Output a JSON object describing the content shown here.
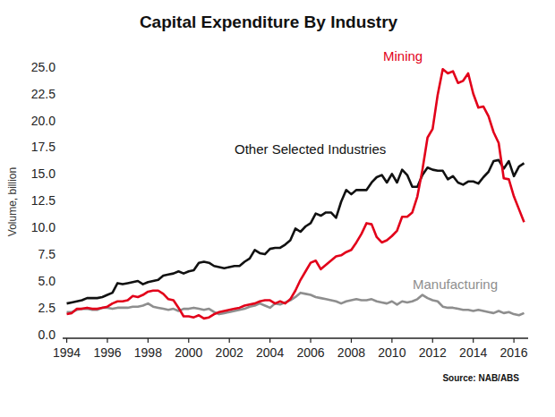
{
  "chart_data": {
    "type": "line",
    "title": "Capital Expenditure By Industry",
    "ylabel": "Volume, billion",
    "source": "Source: NAB/ABS",
    "x": [
      1994,
      1994.25,
      1994.5,
      1994.75,
      1995,
      1995.25,
      1995.5,
      1995.75,
      1996,
      1996.25,
      1996.5,
      1996.75,
      1997,
      1997.25,
      1997.5,
      1997.75,
      1998,
      1998.25,
      1998.5,
      1998.75,
      1999,
      1999.25,
      1999.5,
      1999.75,
      2000,
      2000.25,
      2000.5,
      2000.75,
      2001,
      2001.25,
      2001.5,
      2001.75,
      2002,
      2002.25,
      2002.5,
      2002.75,
      2003,
      2003.25,
      2003.5,
      2003.75,
      2004,
      2004.25,
      2004.5,
      2004.75,
      2005,
      2005.25,
      2005.5,
      2005.75,
      2006,
      2006.25,
      2006.5,
      2006.75,
      2007,
      2007.25,
      2007.5,
      2007.75,
      2008,
      2008.25,
      2008.5,
      2008.75,
      2009,
      2009.25,
      2009.5,
      2009.75,
      2010,
      2010.25,
      2010.5,
      2010.75,
      2011,
      2011.25,
      2011.5,
      2011.75,
      2012,
      2012.25,
      2012.5,
      2012.75,
      2013,
      2013.25,
      2013.5,
      2013.75,
      2014,
      2014.25,
      2014.5,
      2014.75,
      2015,
      2015.25,
      2015.5,
      2015.75,
      2016,
      2016.25,
      2016.5
    ],
    "series": [
      {
        "name": "Mining",
        "color": "#e2001a",
        "values": [
          2.0,
          2.1,
          2.5,
          2.5,
          2.6,
          2.5,
          2.5,
          2.6,
          2.7,
          3.0,
          3.2,
          3.2,
          3.3,
          3.7,
          3.6,
          3.8,
          4.1,
          4.2,
          4.2,
          3.9,
          3.4,
          3.3,
          2.6,
          1.8,
          1.8,
          1.7,
          1.9,
          1.6,
          1.7,
          2.0,
          2.2,
          2.3,
          2.4,
          2.5,
          2.6,
          2.8,
          2.9,
          3.0,
          3.2,
          3.3,
          3.3,
          3.0,
          3.2,
          3.0,
          3.4,
          4.2,
          5.2,
          6.0,
          6.8,
          7.0,
          6.2,
          6.6,
          7.0,
          7.4,
          7.5,
          7.8,
          8.0,
          8.7,
          9.5,
          10.5,
          10.4,
          9.2,
          8.7,
          8.9,
          9.3,
          9.8,
          11.1,
          11.1,
          11.5,
          13.0,
          15.5,
          18.5,
          19.3,
          22.5,
          24.9,
          24.5,
          24.7,
          23.6,
          23.8,
          24.5,
          22.6,
          21.3,
          21.4,
          20.5,
          19.0,
          18.0,
          14.7,
          14.6,
          13.0,
          11.8,
          10.6
        ]
      },
      {
        "name": "Other Selected Industries",
        "color": "#111111",
        "values": [
          3.0,
          3.1,
          3.2,
          3.3,
          3.5,
          3.5,
          3.5,
          3.6,
          3.8,
          4.0,
          4.9,
          4.8,
          4.9,
          5.0,
          5.1,
          4.8,
          5.0,
          5.1,
          5.2,
          5.6,
          5.7,
          5.8,
          6.0,
          5.8,
          6.0,
          6.1,
          6.8,
          6.9,
          6.8,
          6.5,
          6.4,
          6.3,
          6.4,
          6.5,
          6.5,
          6.9,
          7.2,
          8.0,
          7.7,
          7.6,
          8.1,
          8.2,
          8.2,
          8.5,
          8.9,
          10.0,
          9.7,
          10.2,
          10.5,
          11.4,
          11.2,
          11.5,
          11.5,
          11.0,
          12.5,
          13.6,
          13.2,
          13.6,
          13.6,
          13.6,
          14.3,
          14.8,
          15.0,
          14.3,
          15.1,
          14.3,
          15.5,
          15.0,
          13.9,
          13.9,
          15.0,
          15.7,
          15.5,
          15.4,
          15.4,
          14.6,
          14.9,
          14.3,
          14.1,
          14.4,
          14.4,
          14.2,
          14.8,
          15.3,
          16.3,
          16.4,
          15.6,
          16.3,
          14.9,
          15.8,
          16.1
        ]
      },
      {
        "name": "Manufacturing",
        "color": "#8e8e8e",
        "values": [
          2.2,
          2.2,
          2.4,
          2.5,
          2.5,
          2.4,
          2.4,
          2.6,
          2.6,
          2.5,
          2.6,
          2.6,
          2.6,
          2.7,
          2.7,
          2.8,
          3.0,
          2.7,
          2.6,
          2.5,
          2.4,
          2.5,
          2.3,
          2.5,
          2.5,
          2.6,
          2.5,
          2.4,
          2.5,
          2.2,
          2.0,
          2.1,
          2.2,
          2.3,
          2.4,
          2.5,
          2.7,
          2.8,
          3.0,
          2.8,
          2.6,
          3.0,
          2.9,
          3.1,
          3.3,
          3.6,
          4.0,
          3.9,
          3.8,
          3.6,
          3.5,
          3.4,
          3.3,
          3.2,
          3.0,
          3.2,
          3.3,
          3.4,
          3.3,
          3.3,
          3.4,
          3.2,
          3.1,
          3.0,
          3.2,
          2.9,
          3.2,
          3.1,
          3.2,
          3.4,
          3.8,
          3.5,
          3.3,
          3.2,
          2.7,
          2.6,
          2.6,
          2.5,
          2.4,
          2.4,
          2.3,
          2.4,
          2.3,
          2.2,
          2.1,
          2.3,
          2.1,
          2.2,
          2.0,
          1.9,
          2.1
        ]
      }
    ],
    "xlim": [
      1993.8,
      2016.7
    ],
    "xticks": [
      1994,
      1996,
      1998,
      2000,
      2002,
      2004,
      2006,
      2008,
      2010,
      2012,
      2014,
      2016
    ],
    "ylim": [
      0,
      25
    ],
    "yticks": [
      {
        "value": 0,
        "label": "0.0"
      },
      {
        "value": 2.5,
        "label": "2.5"
      },
      {
        "value": 5,
        "label": "5.0"
      },
      {
        "value": 7.5,
        "label": "7.5"
      },
      {
        "value": 10,
        "label": "10.0"
      },
      {
        "value": 12.5,
        "label": "12.5"
      },
      {
        "value": 15,
        "label": "15.0"
      },
      {
        "value": 17.5,
        "label": "17.5"
      },
      {
        "value": 20,
        "label": "20.0"
      },
      {
        "value": 22.5,
        "label": "22.5"
      },
      {
        "value": 25,
        "label": "25.0"
      }
    ],
    "grid": false
  }
}
